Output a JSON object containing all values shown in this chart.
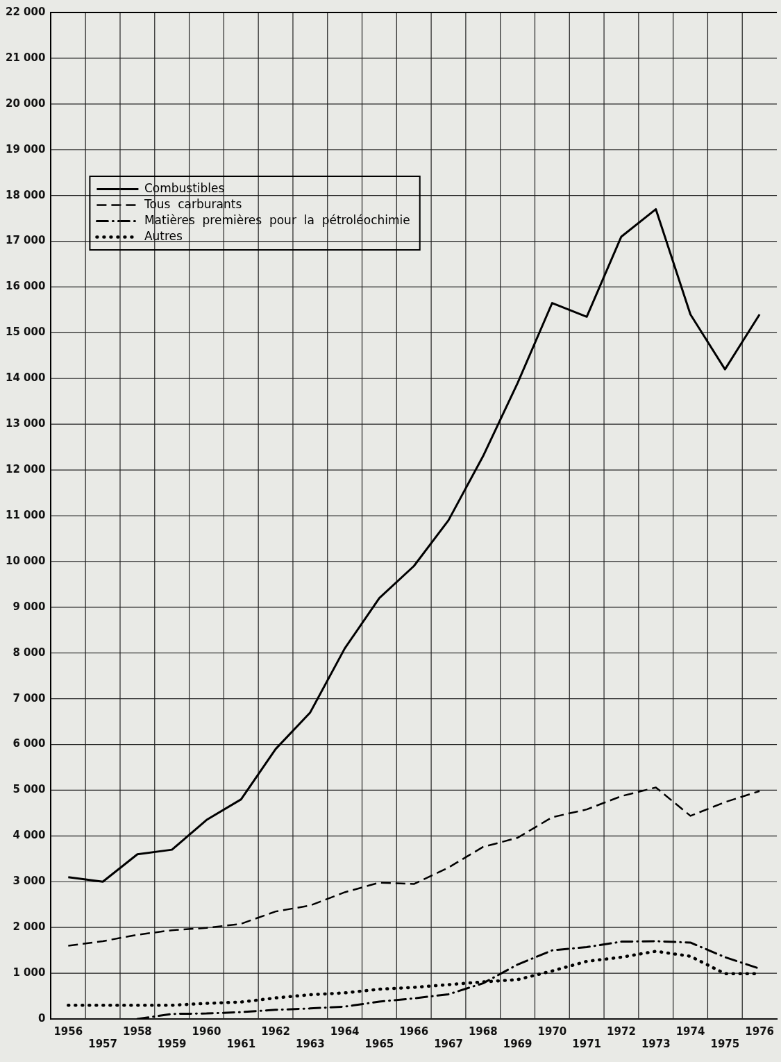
{
  "chart_data": {
    "type": "line",
    "categories": [
      "1956",
      "1957",
      "1958",
      "1959",
      "1960",
      "1961",
      "1962",
      "1963",
      "1964",
      "1965",
      "1966",
      "1967",
      "1968",
      "1969",
      "1970",
      "1971",
      "1972",
      "1973",
      "1974",
      "1975",
      "1976"
    ],
    "series": [
      {
        "name": "Combustibles",
        "color": "#000000",
        "line_style": "solid",
        "values": [
          3100,
          3000,
          3600,
          3700,
          4350,
          4800,
          5900,
          6700,
          8100,
          9200,
          9900,
          10900,
          12300,
          13900,
          15650,
          15350,
          17100,
          17700,
          15400,
          14200,
          15400
        ]
      },
      {
        "name": "Tous  carburants",
        "color": "#000000",
        "line_style": "dashed",
        "values": [
          1600,
          1700,
          1840,
          1940,
          1990,
          2080,
          2350,
          2480,
          2770,
          2980,
          2950,
          3310,
          3760,
          3960,
          4410,
          4580,
          4870,
          5060,
          4440,
          4740,
          4980
        ]
      },
      {
        "name": "Matières  premières  pour  la  pétroléochimie",
        "color": "#000000",
        "line_style": "dashdot",
        "values": [
          null,
          null,
          0,
          110,
          120,
          150,
          200,
          230,
          270,
          380,
          450,
          540,
          780,
          1190,
          1500,
          1570,
          1690,
          1700,
          1670,
          1350,
          1100
        ]
      },
      {
        "name": "Autres",
        "color": "#000000",
        "line_style": "dotted",
        "values": [
          300,
          300,
          300,
          300,
          340,
          370,
          460,
          530,
          570,
          650,
          690,
          750,
          810,
          860,
          1050,
          1260,
          1350,
          1480,
          1370,
          990,
          990
        ]
      }
    ],
    "ylim": [
      0,
      22000
    ],
    "yticks": [
      0,
      {
        "value": 1000,
        "label": "1 000"
      },
      {
        "value": 2000,
        "label": "2 000"
      },
      {
        "value": 3000,
        "label": "3 000"
      },
      {
        "value": 4000,
        "label": "4 000"
      },
      {
        "value": 5000,
        "label": "5 000"
      },
      {
        "value": 6000,
        "label": "6 000"
      },
      {
        "value": 7000,
        "label": "7 000"
      },
      {
        "value": 8000,
        "label": "8 000"
      },
      {
        "value": 9000,
        "label": "9 000"
      },
      {
        "value": 10000,
        "label": "10 000"
      },
      {
        "value": 11000,
        "label": "11 000"
      },
      {
        "value": 12000,
        "label": "12 000"
      },
      {
        "value": 13000,
        "label": "13 000"
      },
      {
        "value": 14000,
        "label": "14 000"
      },
      {
        "value": 15000,
        "label": "15 000"
      },
      {
        "value": 16000,
        "label": "16 000"
      },
      {
        "value": 17000,
        "label": "17 000"
      },
      {
        "value": 18000,
        "label": "18 000"
      },
      {
        "value": 19000,
        "label": "19 000"
      },
      {
        "value": 20000,
        "label": "20 000"
      },
      {
        "value": 21000,
        "label": "21 000"
      },
      {
        "value": 22000,
        "label": "22 000"
      }
    ],
    "grid": true,
    "legend": "top left"
  }
}
